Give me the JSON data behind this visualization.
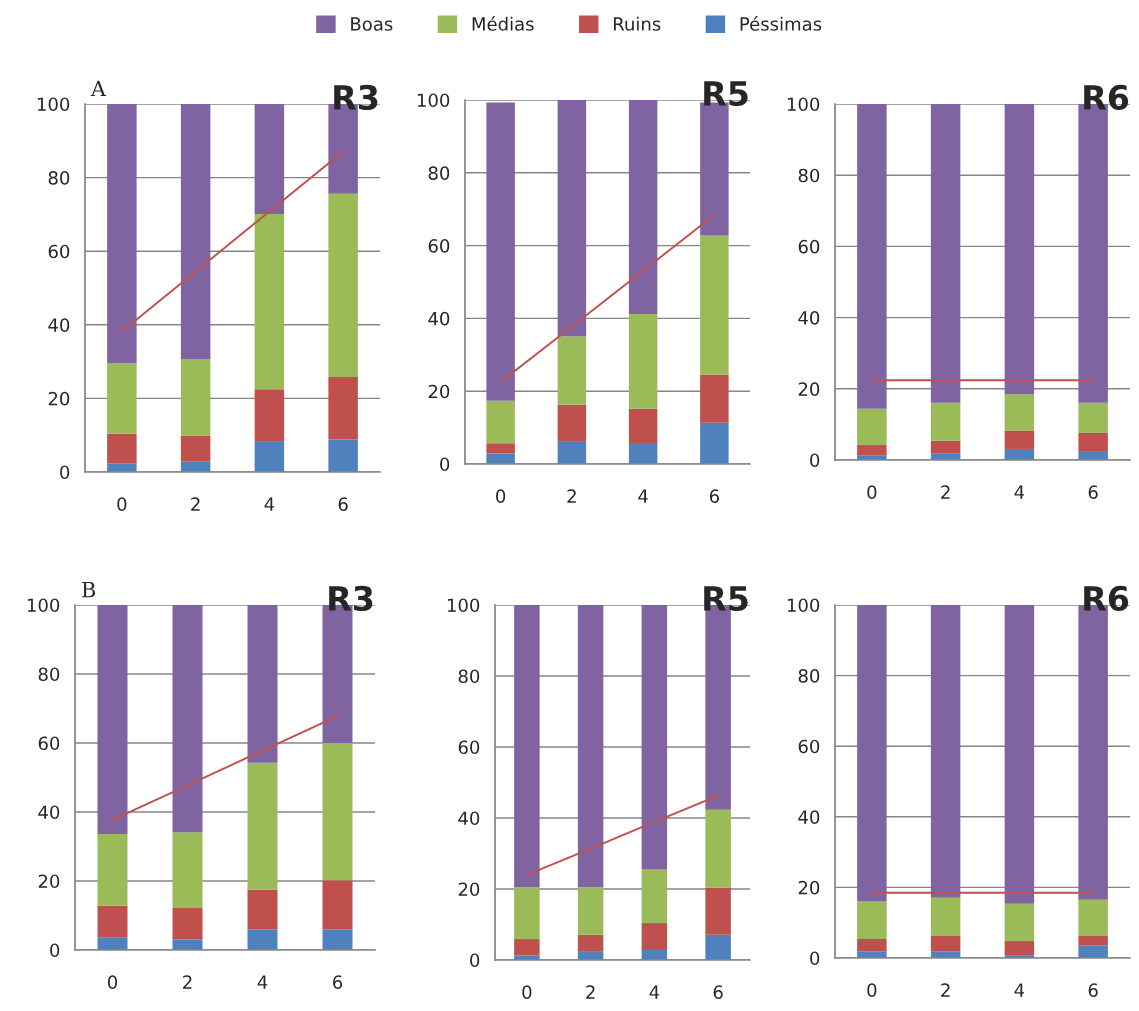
{
  "chart_data": [
    {
      "type": "bar",
      "stacked": true,
      "title": "R3",
      "annotations": [
        "A"
      ],
      "categories": [
        "0",
        "2",
        "4",
        "6"
      ],
      "ylim": [
        0,
        100
      ],
      "yticks": [
        0,
        20,
        40,
        60,
        80,
        100
      ],
      "grid": "y",
      "legend": "top",
      "series": [
        {
          "name": "Péssimas",
          "color": "#4f81bd",
          "values": [
            2.3,
            2.8,
            8.4,
            8.8
          ]
        },
        {
          "name": "Ruins",
          "color": "#c0504d",
          "values": [
            8.1,
            7.1,
            14.1,
            17.0
          ]
        },
        {
          "name": "Médias",
          "color": "#9bbb59",
          "values": [
            19.2,
            20.8,
            47.6,
            49.8
          ]
        },
        {
          "name": "Boas",
          "color": "#8064a2",
          "values": [
            70.4,
            69.3,
            29.9,
            24.4
          ]
        },
        {
          "type": "line",
          "color": "#c0504d",
          "values": [
            38.2,
            54.5,
            70.8,
            87.1
          ]
        }
      ]
    },
    {
      "type": "bar",
      "stacked": true,
      "title": "R5",
      "categories": [
        "0",
        "2",
        "4",
        "6"
      ],
      "ylim": [
        0,
        100
      ],
      "yticks": [
        0,
        20,
        40,
        60,
        80,
        100
      ],
      "grid": "y",
      "series": [
        {
          "color": "#4f81bd",
          "values": [
            2.9,
            6.3,
            5.8,
            11.3
          ]
        },
        {
          "color": "#c0504d",
          "values": [
            2.8,
            10.0,
            9.4,
            13.3
          ]
        },
        {
          "color": "#9bbb59",
          "values": [
            11.7,
            18.8,
            26.0,
            38.2
          ]
        },
        {
          "color": "#8064a2",
          "values": [
            81.9,
            64.9,
            58.8,
            36.5
          ]
        },
        {
          "type": "line",
          "color": "#c0504d",
          "values": [
            22.5,
            37.8,
            53.1,
            68.4
          ]
        }
      ]
    },
    {
      "type": "bar",
      "stacked": true,
      "title": "R6",
      "categories": [
        "0",
        "2",
        "4",
        "6"
      ],
      "ylim": [
        0,
        100
      ],
      "yticks": [
        0,
        20,
        40,
        60,
        80,
        100
      ],
      "grid": "y",
      "series": [
        {
          "color": "#4f81bd",
          "values": [
            1.2,
            1.9,
            3.1,
            2.5
          ]
        },
        {
          "color": "#c0504d",
          "values": [
            3.0,
            3.5,
            5.2,
            5.1
          ]
        },
        {
          "color": "#9bbb59",
          "values": [
            10.2,
            10.7,
            10.2,
            8.5
          ]
        },
        {
          "color": "#8064a2",
          "values": [
            85.6,
            83.9,
            81.5,
            83.9
          ]
        },
        {
          "type": "line",
          "color": "#c0504d",
          "values": [
            22.4,
            22.4,
            22.4,
            22.4
          ]
        }
      ]
    },
    {
      "type": "bar",
      "stacked": true,
      "title": "R3",
      "annotations": [
        "B"
      ],
      "categories": [
        "0",
        "2",
        "4",
        "6"
      ],
      "ylim": [
        0,
        100
      ],
      "yticks": [
        0,
        20,
        40,
        60,
        80,
        100
      ],
      "grid": "y",
      "series": [
        {
          "color": "#4f81bd",
          "values": [
            3.7,
            3.1,
            6.0,
            6.0
          ]
        },
        {
          "color": "#c0504d",
          "values": [
            9.1,
            9.1,
            11.5,
            14.2
          ]
        },
        {
          "color": "#9bbb59",
          "values": [
            20.8,
            21.9,
            36.8,
            39.8
          ]
        },
        {
          "color": "#8064a2",
          "values": [
            66.4,
            65.9,
            45.7,
            40.0
          ]
        },
        {
          "type": "line",
          "color": "#c0504d",
          "values": [
            37.7,
            47.7,
            57.8,
            67.8
          ]
        }
      ]
    },
    {
      "type": "bar",
      "stacked": true,
      "title": "R5",
      "categories": [
        "0",
        "2",
        "4",
        "6"
      ],
      "ylim": [
        0,
        100
      ],
      "yticks": [
        0,
        20,
        40,
        60,
        80,
        100
      ],
      "grid": "y",
      "series": [
        {
          "color": "#4f81bd",
          "values": [
            1.3,
            2.5,
            3.1,
            7.1
          ]
        },
        {
          "color": "#c0504d",
          "values": [
            4.6,
            4.6,
            7.3,
            13.3
          ]
        },
        {
          "color": "#9bbb59",
          "values": [
            14.6,
            13.4,
            15.1,
            21.9
          ]
        },
        {
          "color": "#8064a2",
          "values": [
            79.5,
            79.5,
            74.5,
            57.7
          ]
        },
        {
          "type": "line",
          "color": "#c0504d",
          "values": [
            24.0,
            31.4,
            38.9,
            46.3
          ]
        }
      ]
    },
    {
      "type": "bar",
      "stacked": true,
      "title": "R6",
      "categories": [
        "0",
        "2",
        "4",
        "6"
      ],
      "ylim": [
        0,
        100
      ],
      "yticks": [
        0,
        20,
        40,
        60,
        80,
        100
      ],
      "grid": "y",
      "series": [
        {
          "color": "#4f81bd",
          "values": [
            1.9,
            1.9,
            0.8,
            3.6
          ]
        },
        {
          "color": "#c0504d",
          "values": [
            3.5,
            4.5,
            4.0,
            2.8
          ]
        },
        {
          "color": "#9bbb59",
          "values": [
            10.6,
            10.7,
            10.6,
            10.1
          ]
        },
        {
          "color": "#8064a2",
          "values": [
            84.0,
            82.9,
            84.6,
            83.5
          ]
        },
        {
          "type": "line",
          "color": "#c0504d",
          "values": [
            18.5,
            18.5,
            18.5,
            18.5
          ]
        }
      ]
    }
  ]
}
